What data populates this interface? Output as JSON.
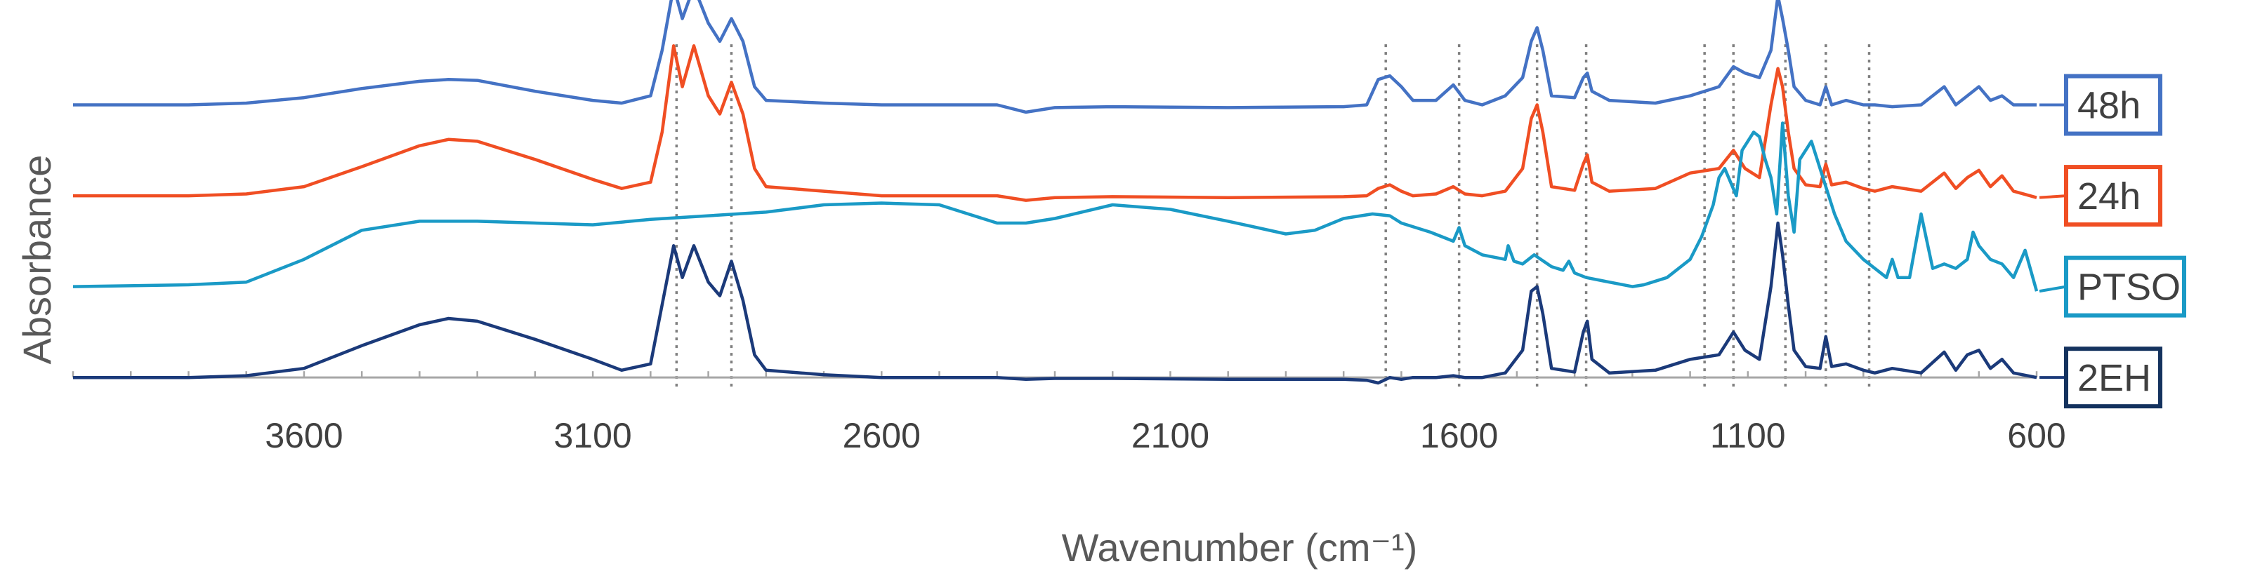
{
  "chart_data": {
    "type": "line",
    "title": "",
    "xlabel": "Wavenumber (cm⁻¹)",
    "ylabel": "Absorbance",
    "x_reversed": true,
    "xlim": [
      4000,
      600
    ],
    "ylim": [
      -0.4,
      4.0
    ],
    "xticks": [
      3600,
      3100,
      2600,
      2100,
      1600,
      1100,
      600
    ],
    "grid": false,
    "legend_placement": "right, next to each trace",
    "reference_lines_cm1": [
      2955,
      2860,
      1727,
      1600,
      1465,
      1380,
      1175,
      1125,
      1035,
      965,
      890
    ],
    "series": [
      {
        "name": "48h",
        "color": "#4472C4",
        "frame_color": "#4472C4",
        "offset": 3.0,
        "x": [
          4000,
          3800,
          3700,
          3600,
          3500,
          3400,
          3350,
          3300,
          3200,
          3100,
          3050,
          3000,
          2980,
          2960,
          2945,
          2925,
          2900,
          2880,
          2860,
          2840,
          2820,
          2800,
          2700,
          2600,
          2400,
          2350,
          2300,
          2200,
          2000,
          1800,
          1760,
          1740,
          1720,
          1700,
          1680,
          1640,
          1610,
          1590,
          1560,
          1520,
          1490,
          1475,
          1465,
          1455,
          1440,
          1400,
          1385,
          1378,
          1370,
          1340,
          1260,
          1200,
          1150,
          1125,
          1105,
          1080,
          1060,
          1048,
          1040,
          1030,
          1020,
          1000,
          975,
          965,
          955,
          930,
          900,
          880,
          850,
          800,
          760,
          740,
          720,
          700,
          680,
          660,
          640,
          600
        ],
        "y": [
          3.0,
          3.0,
          3.02,
          3.08,
          3.18,
          3.26,
          3.28,
          3.27,
          3.15,
          3.05,
          3.02,
          3.1,
          3.6,
          4.3,
          3.95,
          4.3,
          3.9,
          3.7,
          3.95,
          3.7,
          3.2,
          3.05,
          3.02,
          3.0,
          3.0,
          2.92,
          2.97,
          2.98,
          2.97,
          2.98,
          3.0,
          3.28,
          3.32,
          3.2,
          3.05,
          3.05,
          3.22,
          3.05,
          3.0,
          3.1,
          3.3,
          3.7,
          3.85,
          3.6,
          3.1,
          3.08,
          3.3,
          3.35,
          3.15,
          3.05,
          3.02,
          3.1,
          3.2,
          3.42,
          3.35,
          3.3,
          3.6,
          4.2,
          3.95,
          3.6,
          3.2,
          3.05,
          3.0,
          3.2,
          3.0,
          3.05,
          3.0,
          3.0,
          2.98,
          3.0,
          3.2,
          3.0,
          3.1,
          3.2,
          3.05,
          3.1,
          3.0,
          3.0
        ]
      },
      {
        "name": "24h",
        "color": "#F04E23",
        "frame_color": "#F04E23",
        "offset": 2.0,
        "x": [
          4000,
          3800,
          3700,
          3600,
          3500,
          3400,
          3350,
          3300,
          3200,
          3100,
          3050,
          3000,
          2980,
          2960,
          2945,
          2925,
          2900,
          2880,
          2860,
          2840,
          2820,
          2800,
          2700,
          2600,
          2400,
          2350,
          2300,
          2200,
          2000,
          1800,
          1760,
          1740,
          1720,
          1700,
          1680,
          1640,
          1610,
          1590,
          1560,
          1520,
          1490,
          1475,
          1465,
          1455,
          1440,
          1400,
          1385,
          1378,
          1370,
          1340,
          1260,
          1200,
          1150,
          1125,
          1105,
          1080,
          1060,
          1048,
          1040,
          1030,
          1020,
          1000,
          975,
          965,
          955,
          930,
          900,
          880,
          850,
          800,
          760,
          740,
          720,
          700,
          680,
          660,
          640,
          600
        ],
        "y": [
          2.0,
          2.0,
          2.02,
          2.1,
          2.32,
          2.55,
          2.62,
          2.6,
          2.4,
          2.18,
          2.08,
          2.15,
          2.7,
          3.65,
          3.2,
          3.65,
          3.1,
          2.9,
          3.25,
          2.9,
          2.3,
          2.1,
          2.05,
          2.0,
          2.0,
          1.95,
          1.98,
          1.99,
          1.98,
          1.99,
          2.0,
          2.08,
          2.12,
          2.05,
          2.0,
          2.02,
          2.1,
          2.02,
          2.0,
          2.05,
          2.3,
          2.85,
          3.0,
          2.7,
          2.1,
          2.06,
          2.35,
          2.45,
          2.15,
          2.05,
          2.08,
          2.25,
          2.3,
          2.5,
          2.3,
          2.2,
          3.0,
          3.4,
          3.2,
          2.7,
          2.3,
          2.12,
          2.1,
          2.35,
          2.12,
          2.15,
          2.08,
          2.05,
          2.1,
          2.05,
          2.25,
          2.08,
          2.2,
          2.28,
          2.1,
          2.22,
          2.05,
          1.98
        ]
      },
      {
        "name": "PTSO",
        "color": "#1A9AC6",
        "frame_color": "#1A9AC6",
        "offset": 1.0,
        "x": [
          4000,
          3800,
          3700,
          3600,
          3500,
          3400,
          3300,
          3100,
          3000,
          2900,
          2800,
          2700,
          2600,
          2500,
          2450,
          2400,
          2350,
          2300,
          2200,
          2100,
          2000,
          1900,
          1850,
          1800,
          1750,
          1720,
          1700,
          1650,
          1610,
          1600,
          1590,
          1560,
          1520,
          1515,
          1505,
          1490,
          1470,
          1440,
          1420,
          1410,
          1400,
          1380,
          1340,
          1300,
          1280,
          1240,
          1200,
          1180,
          1160,
          1150,
          1140,
          1120,
          1110,
          1090,
          1080,
          1070,
          1060,
          1050,
          1040,
          1030,
          1020,
          1010,
          990,
          970,
          950,
          930,
          900,
          870,
          860,
          850,
          840,
          820,
          800,
          780,
          760,
          740,
          720,
          710,
          700,
          680,
          660,
          640,
          620,
          600
        ],
        "y": [
          1.0,
          1.02,
          1.05,
          1.3,
          1.62,
          1.72,
          1.72,
          1.68,
          1.74,
          1.78,
          1.82,
          1.9,
          1.92,
          1.9,
          1.8,
          1.7,
          1.7,
          1.75,
          1.9,
          1.85,
          1.72,
          1.58,
          1.62,
          1.75,
          1.8,
          1.78,
          1.7,
          1.6,
          1.5,
          1.65,
          1.45,
          1.35,
          1.3,
          1.45,
          1.28,
          1.25,
          1.35,
          1.22,
          1.18,
          1.28,
          1.15,
          1.1,
          1.05,
          1.0,
          1.02,
          1.1,
          1.3,
          1.55,
          1.9,
          2.2,
          2.3,
          2.0,
          2.5,
          2.7,
          2.65,
          2.4,
          2.2,
          1.8,
          2.8,
          2.0,
          1.6,
          2.4,
          2.6,
          2.2,
          1.8,
          1.5,
          1.3,
          1.15,
          1.1,
          1.3,
          1.1,
          1.1,
          1.8,
          1.2,
          1.25,
          1.2,
          1.3,
          1.6,
          1.45,
          1.3,
          1.25,
          1.1,
          1.4,
          0.95
        ]
      },
      {
        "name": "2EH",
        "color": "#1B3A7A",
        "frame_color": "#14325E",
        "offset": 0.0,
        "x": [
          4000,
          3800,
          3700,
          3600,
          3500,
          3400,
          3350,
          3300,
          3200,
          3100,
          3050,
          3000,
          2980,
          2960,
          2945,
          2925,
          2900,
          2880,
          2860,
          2840,
          2820,
          2800,
          2700,
          2600,
          2400,
          2350,
          2300,
          2200,
          2000,
          1800,
          1760,
          1740,
          1720,
          1700,
          1680,
          1640,
          1610,
          1590,
          1560,
          1520,
          1490,
          1475,
          1465,
          1455,
          1440,
          1400,
          1385,
          1378,
          1370,
          1340,
          1260,
          1200,
          1150,
          1125,
          1105,
          1080,
          1060,
          1048,
          1040,
          1030,
          1020,
          1000,
          975,
          965,
          955,
          930,
          900,
          880,
          850,
          800,
          760,
          740,
          720,
          700,
          680,
          660,
          640,
          600
        ],
        "y": [
          0.0,
          0.0,
          0.02,
          0.1,
          0.35,
          0.58,
          0.65,
          0.62,
          0.42,
          0.2,
          0.08,
          0.15,
          0.8,
          1.45,
          1.1,
          1.45,
          1.05,
          0.9,
          1.28,
          0.85,
          0.25,
          0.08,
          0.03,
          0.0,
          0.0,
          -0.02,
          -0.01,
          -0.01,
          -0.02,
          -0.02,
          -0.03,
          -0.06,
          0.0,
          -0.02,
          0.0,
          0.0,
          0.02,
          0.0,
          0.0,
          0.05,
          0.3,
          0.95,
          1.0,
          0.7,
          0.1,
          0.06,
          0.5,
          0.62,
          0.2,
          0.05,
          0.08,
          0.2,
          0.25,
          0.5,
          0.3,
          0.2,
          1.0,
          1.7,
          1.35,
          0.8,
          0.3,
          0.12,
          0.1,
          0.45,
          0.12,
          0.15,
          0.08,
          0.05,
          0.1,
          0.05,
          0.28,
          0.08,
          0.25,
          0.3,
          0.1,
          0.2,
          0.05,
          0.0
        ]
      }
    ]
  }
}
